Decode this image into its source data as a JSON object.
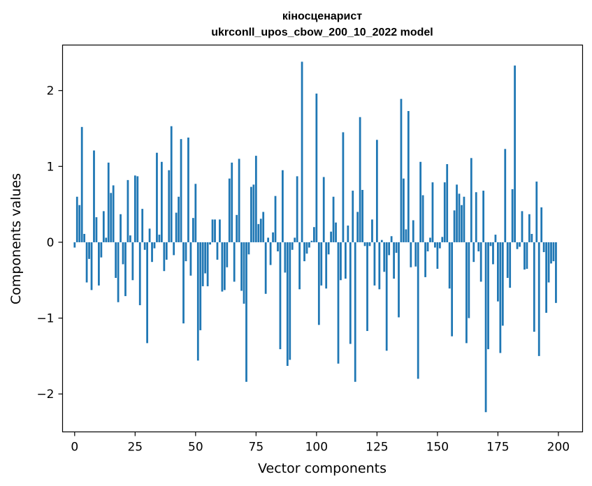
{
  "chart_data": {
    "type": "bar",
    "title": "кіносценарист",
    "subtitle": "ukrconll_upos_cbow_200_10_2022 model",
    "xlabel": "Vector components",
    "ylabel": "Components values",
    "xlim": [
      -5,
      210
    ],
    "ylim": [
      -2.5,
      2.6
    ],
    "xticks": [
      0,
      25,
      50,
      75,
      100,
      125,
      150,
      175,
      200
    ],
    "yticks": [
      -2,
      -1,
      0,
      1,
      2
    ],
    "xtick_labels": [
      "0",
      "25",
      "50",
      "75",
      "100",
      "125",
      "150",
      "175",
      "200"
    ],
    "ytick_labels": [
      "−2",
      "−1",
      "0",
      "1",
      "2"
    ],
    "bar_color": "#1f77b4",
    "grid": false,
    "x": [
      0,
      1,
      2,
      3,
      4,
      5,
      6,
      7,
      8,
      9,
      10,
      11,
      12,
      13,
      14,
      15,
      16,
      17,
      18,
      19,
      20,
      21,
      22,
      23,
      24,
      25,
      26,
      27,
      28,
      29,
      30,
      31,
      32,
      33,
      34,
      35,
      36,
      37,
      38,
      39,
      40,
      41,
      42,
      43,
      44,
      45,
      46,
      47,
      48,
      49,
      50,
      51,
      52,
      53,
      54,
      55,
      56,
      57,
      58,
      59,
      60,
      61,
      62,
      63,
      64,
      65,
      66,
      67,
      68,
      69,
      70,
      71,
      72,
      73,
      74,
      75,
      76,
      77,
      78,
      79,
      80,
      81,
      82,
      83,
      84,
      85,
      86,
      87,
      88,
      89,
      90,
      91,
      92,
      93,
      94,
      95,
      96,
      97,
      98,
      99,
      100,
      101,
      102,
      103,
      104,
      105,
      106,
      107,
      108,
      109,
      110,
      111,
      112,
      113,
      114,
      115,
      116,
      117,
      118,
      119,
      120,
      121,
      122,
      123,
      124,
      125,
      126,
      127,
      128,
      129,
      130,
      131,
      132,
      133,
      134,
      135,
      136,
      137,
      138,
      139,
      140,
      141,
      142,
      143,
      144,
      145,
      146,
      147,
      148,
      149,
      150,
      151,
      152,
      153,
      154,
      155,
      156,
      157,
      158,
      159,
      160,
      161,
      162,
      163,
      164,
      165,
      166,
      167,
      168,
      169,
      170,
      171,
      172,
      173,
      174,
      175,
      176,
      177,
      178,
      179,
      180,
      181,
      182,
      183,
      184,
      185,
      186,
      187,
      188,
      189,
      190,
      191,
      192,
      193,
      194,
      195,
      196,
      197,
      198,
      199
    ],
    "values": [
      -0.07,
      0.6,
      0.49,
      1.52,
      0.11,
      -0.53,
      -0.22,
      -0.63,
      1.21,
      0.33,
      -0.57,
      -0.2,
      0.41,
      0.06,
      1.05,
      0.65,
      0.75,
      -0.47,
      -0.79,
      0.37,
      -0.29,
      -0.71,
      0.82,
      0.09,
      -0.5,
      0.88,
      0.87,
      -0.83,
      0.44,
      -0.1,
      -1.33,
      0.18,
      -0.26,
      -0.08,
      1.18,
      0.1,
      1.06,
      -0.38,
      -0.23,
      0.95,
      1.53,
      -0.17,
      0.39,
      0.6,
      1.36,
      -1.07,
      -0.25,
      1.38,
      -0.44,
      0.32,
      0.77,
      -1.56,
      -1.16,
      -0.58,
      -0.41,
      -0.58,
      -0.03,
      0.3,
      0.3,
      -0.23,
      0.3,
      -0.65,
      -0.63,
      -0.33,
      0.84,
      1.05,
      -0.52,
      0.36,
      1.1,
      -0.64,
      -0.81,
      -1.84,
      -0.16,
      0.73,
      0.76,
      1.14,
      0.24,
      0.31,
      0.4,
      -0.68,
      0.06,
      -0.3,
      0.13,
      0.61,
      -0.12,
      -1.41,
      0.95,
      -0.4,
      -1.63,
      -1.55,
      -0.1,
      0.06,
      0.87,
      -0.62,
      2.38,
      -0.25,
      -0.15,
      -0.07,
      0.02,
      0.2,
      1.96,
      -1.09,
      -0.57,
      0.86,
      -0.61,
      -0.16,
      0.14,
      0.6,
      0.26,
      -1.6,
      -0.5,
      1.45,
      -0.48,
      0.22,
      -1.34,
      0.68,
      -1.84,
      0.4,
      1.65,
      0.69,
      -0.05,
      -1.17,
      -0.05,
      0.3,
      -0.57,
      1.35,
      -0.62,
      0.03,
      -0.39,
      -1.43,
      -0.17,
      0.08,
      -0.48,
      -0.14,
      -0.99,
      1.89,
      0.84,
      0.17,
      1.73,
      -0.33,
      0.29,
      -0.32,
      -1.8,
      1.06,
      0.62,
      -0.46,
      -0.12,
      0.06,
      0.79,
      -0.07,
      -0.35,
      -0.08,
      0.07,
      0.79,
      1.03,
      -0.61,
      -1.24,
      0.42,
      0.76,
      0.64,
      0.49,
      0.6,
      -1.33,
      -1.0,
      1.11,
      -0.26,
      0.66,
      -0.12,
      -0.52,
      0.68,
      -2.24,
      -1.41,
      -0.05,
      -0.29,
      0.1,
      -0.78,
      -1.46,
      -1.1,
      1.23,
      -0.47,
      -0.6,
      0.7,
      2.33,
      -0.09,
      -0.06,
      0.41,
      -0.36,
      -0.35,
      0.37,
      0.11,
      -1.18,
      0.8,
      -1.5,
      0.46,
      -0.13,
      -0.93,
      -0.53,
      -0.28,
      -0.25,
      -0.8
    ]
  }
}
